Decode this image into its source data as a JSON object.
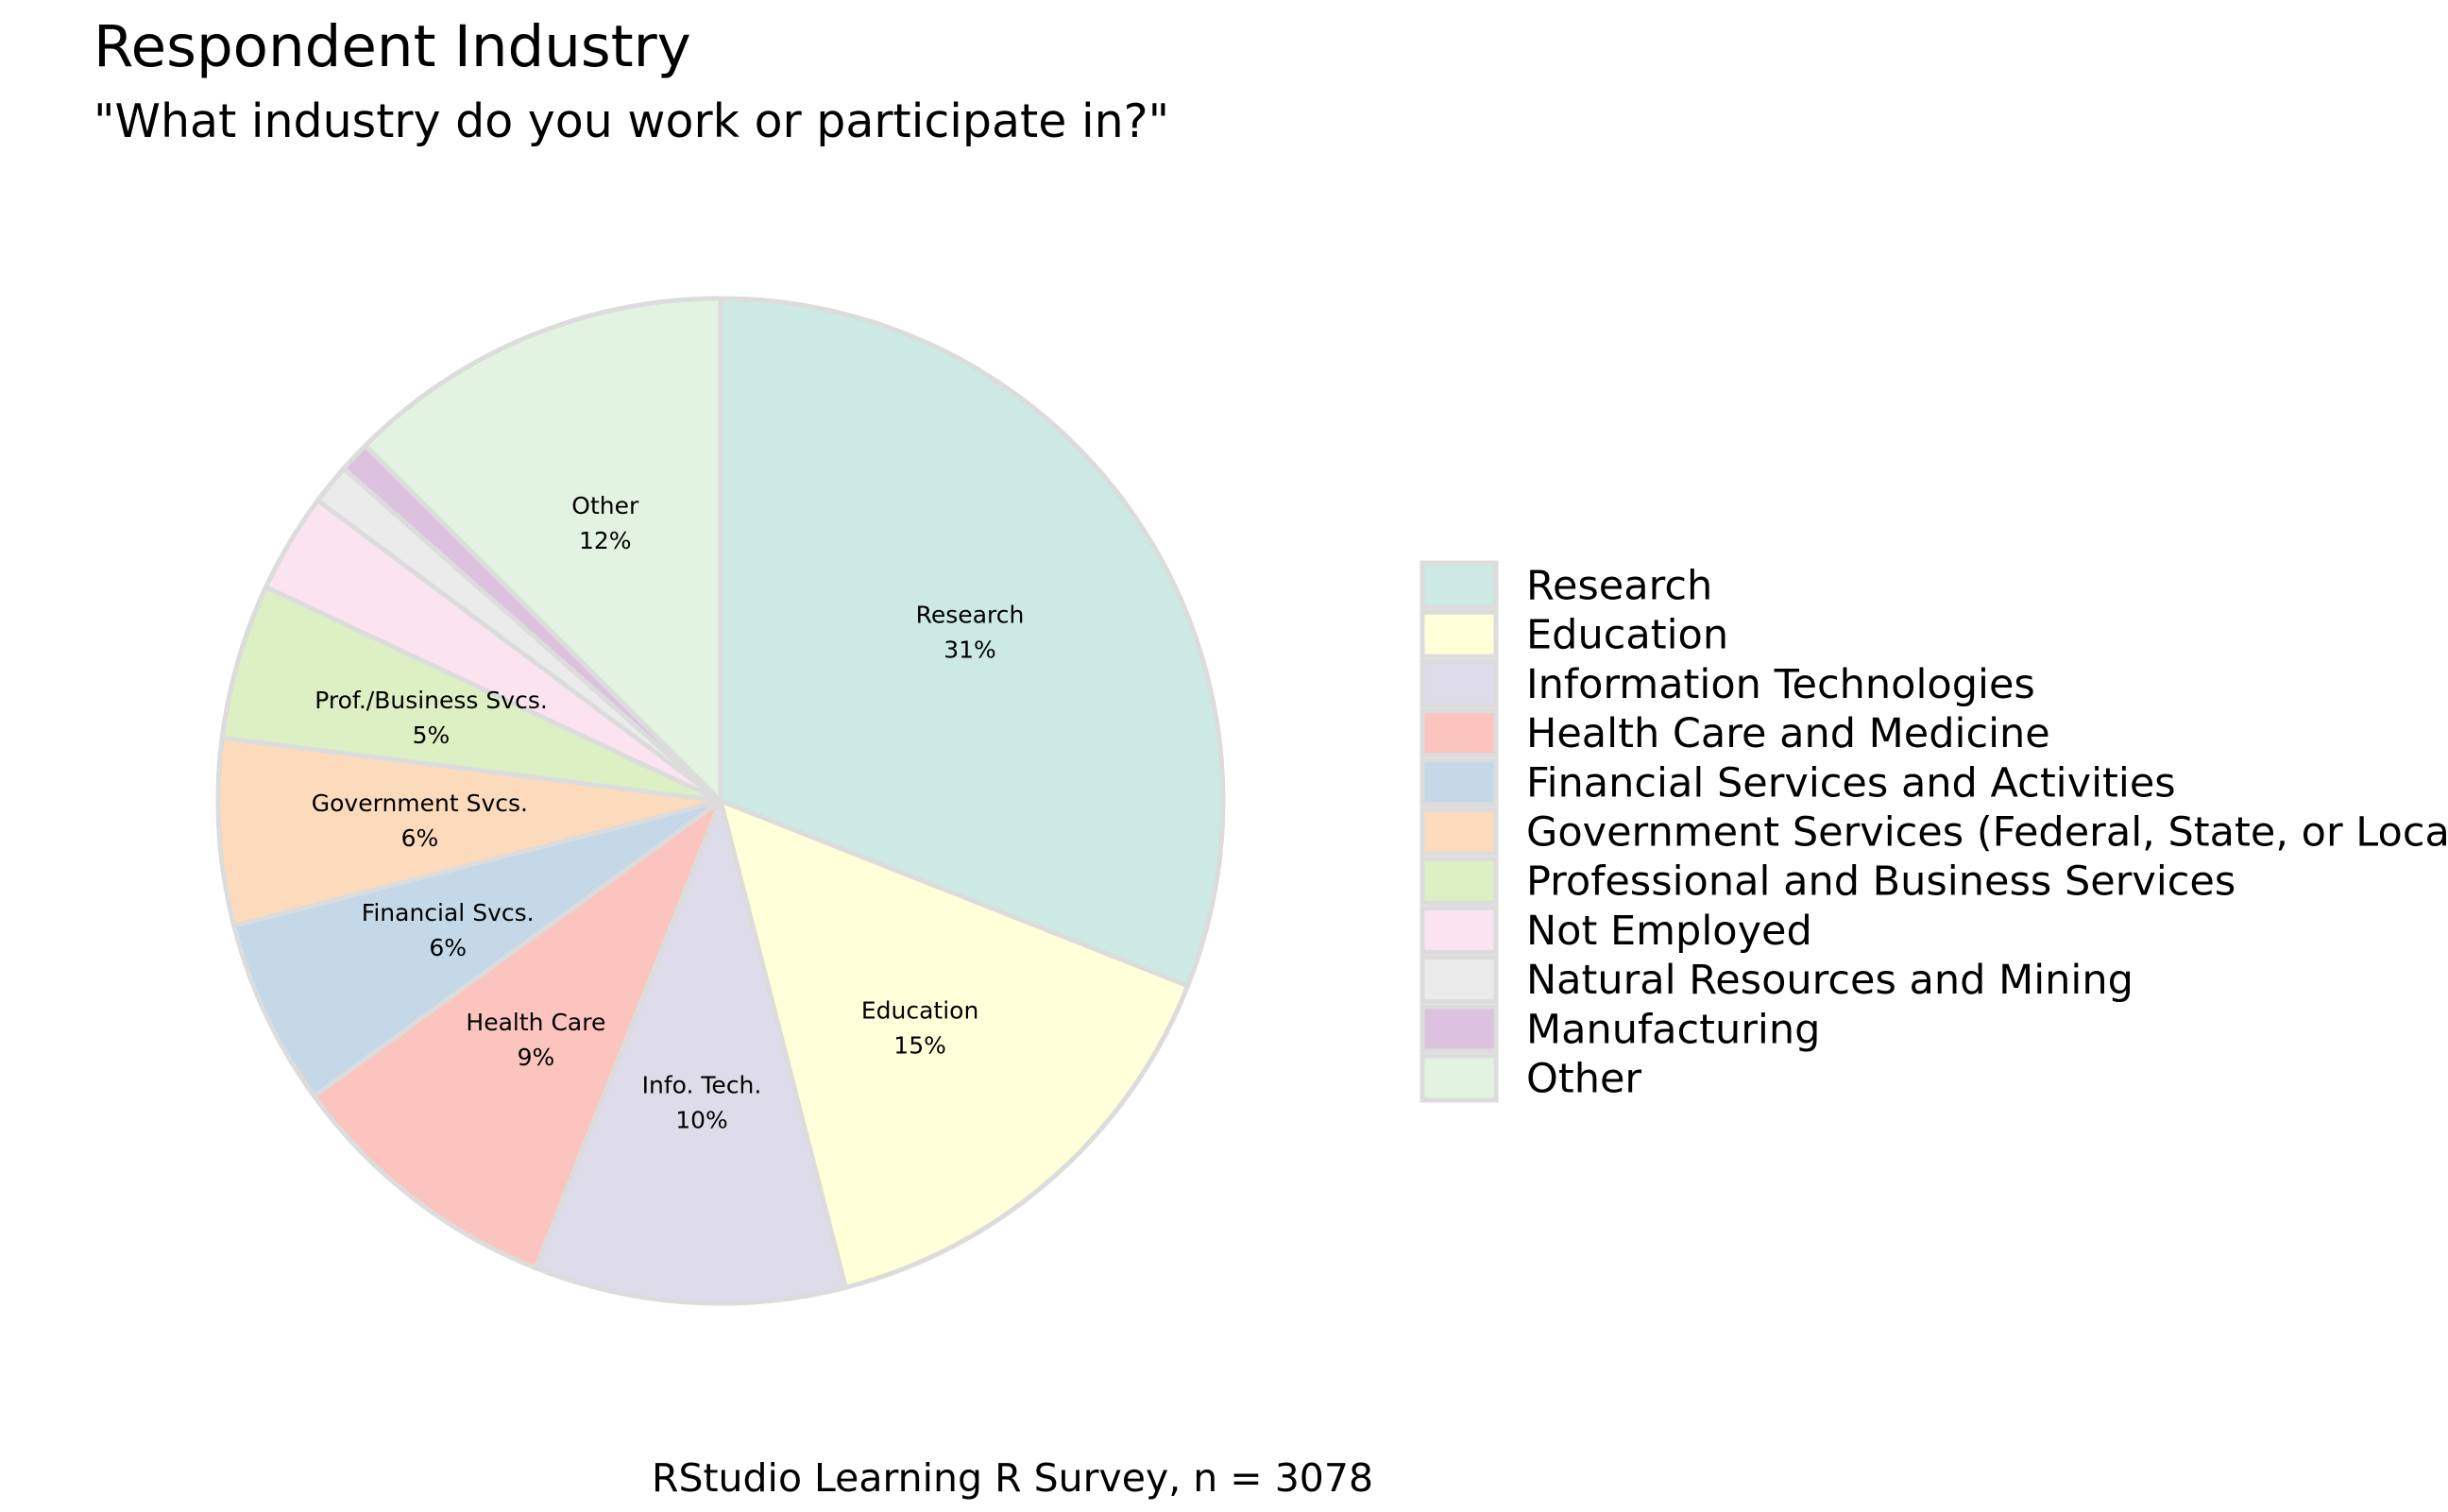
{
  "chart_data": {
    "type": "pie",
    "title": "Respondent Industry",
    "subtitle": "\"What industry do you work or participate in?\"",
    "caption": "RStudio Learning R Survey, n = 3078",
    "slices": [
      {
        "name": "Research",
        "short_label": "Research",
        "value": 31,
        "value_label": "31%",
        "color": "#cce9e3"
      },
      {
        "name": "Education",
        "short_label": "Education",
        "value": 15,
        "value_label": "15%",
        "color": "#ffffd9"
      },
      {
        "name": "Information Technologies",
        "short_label": "Info. Tech.",
        "value": 10,
        "value_label": "10%",
        "color": "#dedcea"
      },
      {
        "name": "Health Care and Medicine",
        "short_label": "Health Care",
        "value": 9,
        "value_label": "9%",
        "color": "#fbc4bf"
      },
      {
        "name": "Financial Services and Activities",
        "short_label": "Financial Svcs.",
        "value": 6,
        "value_label": "6%",
        "color": "#c4d8e7"
      },
      {
        "name": "Government Services (Federal, State, or Local)",
        "short_label": "Government Svcs.",
        "value": 6,
        "value_label": "6%",
        "color": "#fcdbbc"
      },
      {
        "name": "Professional and Business Services",
        "short_label": "Prof./Business Svcs.",
        "value": 5,
        "value_label": "5%",
        "color": "#dcf0c4"
      },
      {
        "name": "Not Employed",
        "short_label": "",
        "value": 3.2,
        "value_label": "",
        "color": "#fbe4f0"
      },
      {
        "name": "Natural Resources and Mining",
        "short_label": "",
        "value": 1.3,
        "value_label": "",
        "color": "#ebebeb"
      },
      {
        "name": "Manufacturing",
        "short_label": "",
        "value": 1.0,
        "value_label": "",
        "color": "#dcc2de"
      },
      {
        "name": "Other",
        "short_label": "Other",
        "value": 12.5,
        "value_label": "12%",
        "color": "#e3f3e1"
      }
    ],
    "slice_border_color": "#dcdcdc",
    "start_direction": "top",
    "direction": "clockwise-from-top, last slice Other",
    "legend_position": "right"
  }
}
